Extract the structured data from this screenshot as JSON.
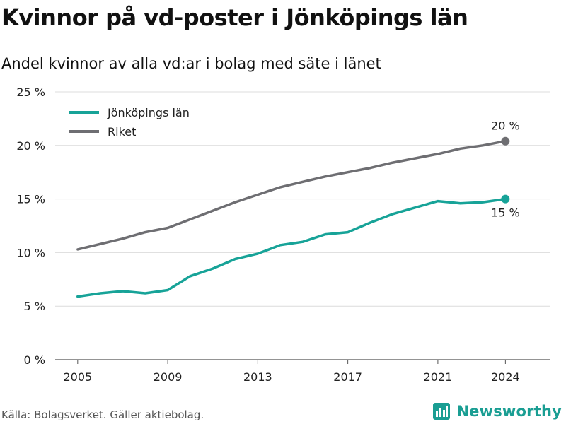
{
  "title": "Kvinnor på vd-poster i Jönköpings län",
  "subtitle": "Andel kvinnor av alla vd:ar i bolag med säte i länet",
  "footer": "Källa: Bolagsverket. Gäller aktiebolag.",
  "brand": {
    "name": "Newsworthy",
    "icon": "newsworthy-logo-icon",
    "color": "#1a9e93"
  },
  "chart_data": {
    "type": "line",
    "title": "Kvinnor på vd-poster i Jönköpings län",
    "subtitle": "Andel kvinnor av alla vd:ar i bolag med säte i länet",
    "xlabel": "",
    "ylabel": "",
    "x": [
      2005,
      2006,
      2007,
      2008,
      2009,
      2010,
      2011,
      2012,
      2013,
      2014,
      2015,
      2016,
      2017,
      2018,
      2019,
      2020,
      2021,
      2022,
      2023,
      2024
    ],
    "xlim": [
      2004,
      2026
    ],
    "ylim": [
      0,
      25
    ],
    "x_ticks": [
      "2005",
      "2009",
      "2013",
      "2017",
      "2021",
      "2024"
    ],
    "x_tick_values": [
      2005,
      2009,
      2013,
      2017,
      2021,
      2024
    ],
    "y_ticks": [
      "0 %",
      "5 %",
      "10 %",
      "15 %",
      "20 %",
      "25 %"
    ],
    "y_tick_values": [
      0,
      5,
      10,
      15,
      20,
      25
    ],
    "grid": true,
    "legend_position": "top-left",
    "series": [
      {
        "name": "Jönköpings län",
        "color": "#17a398",
        "values": [
          5.9,
          6.2,
          6.4,
          6.2,
          6.5,
          7.8,
          8.5,
          9.4,
          9.9,
          10.7,
          11.0,
          11.7,
          11.9,
          12.8,
          13.6,
          14.2,
          14.8,
          14.6,
          14.7,
          15.0
        ],
        "end_label": "15 %"
      },
      {
        "name": "Riket",
        "color": "#6e6e72",
        "values": [
          10.3,
          10.8,
          11.3,
          11.9,
          12.3,
          13.1,
          13.9,
          14.7,
          15.4,
          16.1,
          16.6,
          17.1,
          17.5,
          17.9,
          18.4,
          18.8,
          19.2,
          19.7,
          20.0,
          20.4
        ],
        "end_label": "20 %"
      }
    ]
  }
}
